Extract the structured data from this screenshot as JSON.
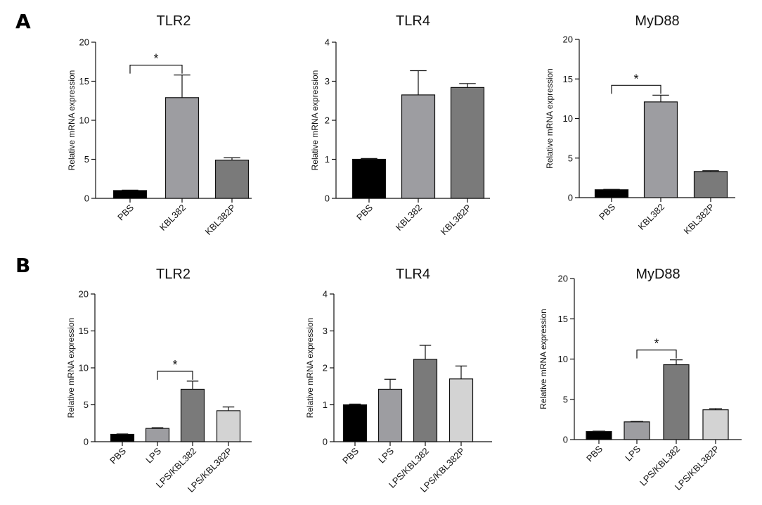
{
  "panels": {
    "a": "A",
    "b": "B"
  },
  "chart_data": [
    {
      "type": "bar",
      "panel": "A",
      "title": "TLR2",
      "ylabel": "Relative mRNA expression",
      "ylim": [
        0,
        20
      ],
      "yticks": [
        0,
        5,
        10,
        15,
        20
      ],
      "categories": [
        "PBS",
        "KBL382",
        "KBL382P"
      ],
      "values": [
        1.0,
        12.9,
        4.9
      ],
      "errors": [
        0.05,
        2.9,
        0.3
      ],
      "colors": [
        "#000000",
        "#9d9da1",
        "#7a7a7a"
      ],
      "significance": [
        {
          "from": 0,
          "to": 1,
          "label": "*"
        }
      ]
    },
    {
      "type": "bar",
      "panel": "A",
      "title": "TLR4",
      "ylabel": "Relative mRNA expression",
      "ylim": [
        0,
        4
      ],
      "yticks": [
        0,
        1,
        2,
        3,
        4
      ],
      "categories": [
        "PBS",
        "KBL382",
        "KBL382P"
      ],
      "values": [
        1.0,
        2.65,
        2.84
      ],
      "errors": [
        0.02,
        0.62,
        0.1
      ],
      "colors": [
        "#000000",
        "#9d9da1",
        "#7a7a7a"
      ],
      "significance": []
    },
    {
      "type": "bar",
      "panel": "A",
      "title": "MyD88",
      "ylabel": "Relative mRNA expression",
      "ylim": [
        0,
        20
      ],
      "yticks": [
        0,
        5,
        10,
        15,
        20
      ],
      "categories": [
        "PBS",
        "KBL382",
        "KBL382P"
      ],
      "values": [
        1.0,
        12.1,
        3.3
      ],
      "errors": [
        0.05,
        0.85,
        0.1
      ],
      "colors": [
        "#000000",
        "#9d9da1",
        "#7a7a7a"
      ],
      "significance": [
        {
          "from": 0,
          "to": 1,
          "label": "*"
        }
      ]
    },
    {
      "type": "bar",
      "panel": "B",
      "title": "TLR2",
      "ylabel": "Relative mRNA expression",
      "ylim": [
        0,
        20
      ],
      "yticks": [
        0,
        5,
        10,
        15,
        20
      ],
      "categories": [
        "PBS",
        "LPS",
        "LPS/KBL382",
        "LPS/KBL382P"
      ],
      "values": [
        1.0,
        1.8,
        7.1,
        4.2
      ],
      "errors": [
        0.05,
        0.1,
        1.1,
        0.5
      ],
      "colors": [
        "#000000",
        "#9d9da1",
        "#7a7a7a",
        "#d3d3d3"
      ],
      "significance": [
        {
          "from": 1,
          "to": 2,
          "label": "*"
        }
      ]
    },
    {
      "type": "bar",
      "panel": "B",
      "title": "TLR4",
      "ylabel": "Relative mRNA expression",
      "ylim": [
        0,
        4
      ],
      "yticks": [
        0,
        1,
        2,
        3,
        4
      ],
      "categories": [
        "PBS",
        "LPS",
        "LPS/KBL382",
        "LPS/KBL382P"
      ],
      "values": [
        1.0,
        1.42,
        2.23,
        1.7
      ],
      "errors": [
        0.02,
        0.27,
        0.38,
        0.35
      ],
      "colors": [
        "#000000",
        "#9d9da1",
        "#7a7a7a",
        "#d3d3d3"
      ],
      "significance": []
    },
    {
      "type": "bar",
      "panel": "B",
      "title": "MyD88",
      "ylabel": "Relative mRNA expression",
      "ylim": [
        0,
        20
      ],
      "yticks": [
        0,
        5,
        10,
        15,
        20
      ],
      "categories": [
        "PBS",
        "LPS",
        "LPS/KBL382",
        "LPS/KBL382P"
      ],
      "values": [
        1.0,
        2.2,
        9.3,
        3.7
      ],
      "errors": [
        0.05,
        0.05,
        0.6,
        0.15
      ],
      "colors": [
        "#000000",
        "#9d9da1",
        "#7a7a7a",
        "#d3d3d3"
      ],
      "significance": [
        {
          "from": 1,
          "to": 2,
          "label": "*"
        }
      ]
    }
  ]
}
